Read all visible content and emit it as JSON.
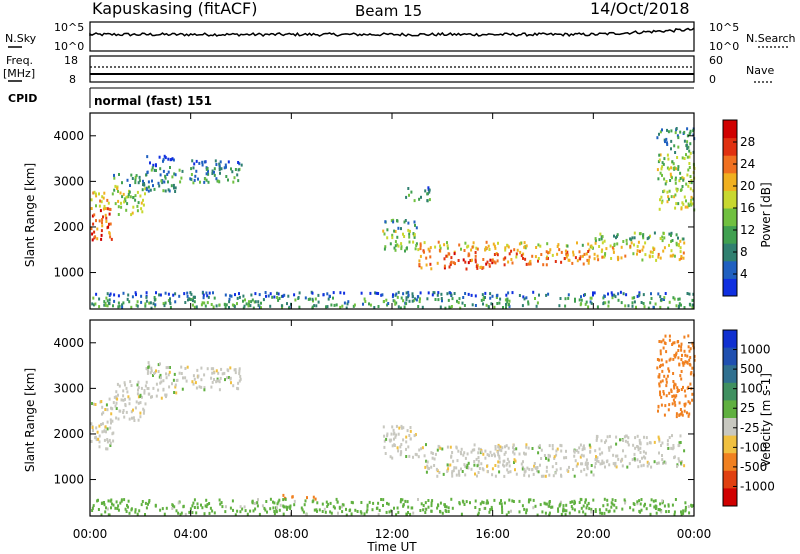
{
  "header": {
    "station": "Kapuskasing (fitACF)",
    "beam": "Beam 15",
    "date": "14/Oct/2018"
  },
  "top_panels": {
    "nsky_label": "N.Sky",
    "nsky_ticks": [
      "10^5",
      "10^0"
    ],
    "nsearch_label": "N.Search",
    "nsearch_ticks": [
      "10^5",
      "10^0"
    ],
    "freq_label": "Freq.",
    "freq_unit": "[MHz]",
    "freq_ticks": [
      "18",
      "8"
    ],
    "nave_label": "Nave",
    "nave_ticks": [
      "60",
      "0"
    ],
    "cpid_label": "CPID",
    "cpid_value": "normal (fast) 151"
  },
  "x_axis": {
    "label": "Time UT",
    "ticks": [
      "00:00",
      "04:00",
      "08:00",
      "12:00",
      "16:00",
      "20:00",
      "00:00"
    ]
  },
  "colors": {
    "power_scale": [
      "#1030e0",
      "#2060c0",
      "#308070",
      "#40a050",
      "#70c040",
      "#c8d830",
      "#f0b020",
      "#f07020",
      "#e03010",
      "#d00000"
    ],
    "velocity_scale": [
      "#1030d0",
      "#2050b0",
      "#307090",
      "#409060",
      "#60b040",
      "#c8c8c0",
      "#f0c040",
      "#f08020",
      "#e04010",
      "#d00000"
    ]
  },
  "chart_data": [
    {
      "type": "heatmap",
      "name": "power-panel",
      "xlabel": "",
      "ylabel": "Slant Range [km]",
      "xlim": [
        0,
        24
      ],
      "ylim": [
        200,
        4500
      ],
      "y_ticks": [
        "1000",
        "2000",
        "3000",
        "4000"
      ],
      "colorbar_label": "Power [dB]",
      "colorbar_ticks": [
        "4",
        "8",
        "12",
        "16",
        "20",
        "24",
        "28"
      ],
      "colorbar_range": [
        0,
        30
      ],
      "regions": [
        {
          "t": [
            0.0,
            0.9
          ],
          "r": [
            1700,
            2800
          ],
          "v": 24
        },
        {
          "t": [
            0.9,
            2.2
          ],
          "r": [
            2300,
            3200
          ],
          "v": 14
        },
        {
          "t": [
            2.2,
            3.5
          ],
          "r": [
            2800,
            3600
          ],
          "v": 8
        },
        {
          "t": [
            3.5,
            6.0
          ],
          "r": [
            3000,
            3500
          ],
          "v": 9
        },
        {
          "t": [
            11.6,
            13.0
          ],
          "r": [
            1500,
            2200
          ],
          "v": 14
        },
        {
          "t": [
            13.0,
            16.0
          ],
          "r": [
            1100,
            1700
          ],
          "v": 24
        },
        {
          "t": [
            16.0,
            20.0
          ],
          "r": [
            1200,
            1700
          ],
          "v": 22
        },
        {
          "t": [
            20.0,
            23.6
          ],
          "r": [
            1300,
            1900
          ],
          "v": 18
        },
        {
          "t": [
            22.5,
            24.0
          ],
          "r": [
            2400,
            4200
          ],
          "v": 14
        },
        {
          "t": [
            12.5,
            13.5
          ],
          "r": [
            2600,
            2900
          ],
          "v": 10
        },
        {
          "t": [
            0.0,
            24.0
          ],
          "r": [
            250,
            600
          ],
          "v": 10
        }
      ]
    },
    {
      "type": "heatmap",
      "name": "velocity-panel",
      "xlabel": "Time UT",
      "ylabel": "Slant Range [km]",
      "xlim": [
        0,
        24
      ],
      "ylim": [
        200,
        4500
      ],
      "y_ticks": [
        "1000",
        "2000",
        "3000",
        "4000"
      ],
      "colorbar_label": "Velocity [m s-1]",
      "colorbar_ticks": [
        "1000",
        "500",
        "100",
        "25",
        "-25",
        "-100",
        "-500",
        "-1000"
      ],
      "colorbar_range": [
        -1000,
        1000
      ],
      "regions": [
        {
          "t": [
            0.0,
            0.9
          ],
          "r": [
            1700,
            2800
          ],
          "v": 0
        },
        {
          "t": [
            0.9,
            2.2
          ],
          "r": [
            2300,
            3200
          ],
          "v": 0
        },
        {
          "t": [
            2.2,
            3.5
          ],
          "r": [
            2800,
            3600
          ],
          "v": 0
        },
        {
          "t": [
            3.5,
            6.0
          ],
          "r": [
            3000,
            3500
          ],
          "v": 0
        },
        {
          "t": [
            11.6,
            13.0
          ],
          "r": [
            1500,
            2200
          ],
          "v": 0
        },
        {
          "t": [
            13.0,
            20.0
          ],
          "r": [
            1100,
            1800
          ],
          "v": 0
        },
        {
          "t": [
            20.0,
            23.6
          ],
          "r": [
            1300,
            2000
          ],
          "v": 0
        },
        {
          "t": [
            22.5,
            24.0
          ],
          "r": [
            2400,
            4200
          ],
          "v": -200
        },
        {
          "t": [
            7.5,
            9.0
          ],
          "r": [
            600,
            700
          ],
          "v": -150
        },
        {
          "t": [
            0.0,
            24.0
          ],
          "r": [
            250,
            600
          ],
          "v": 50
        }
      ]
    }
  ]
}
